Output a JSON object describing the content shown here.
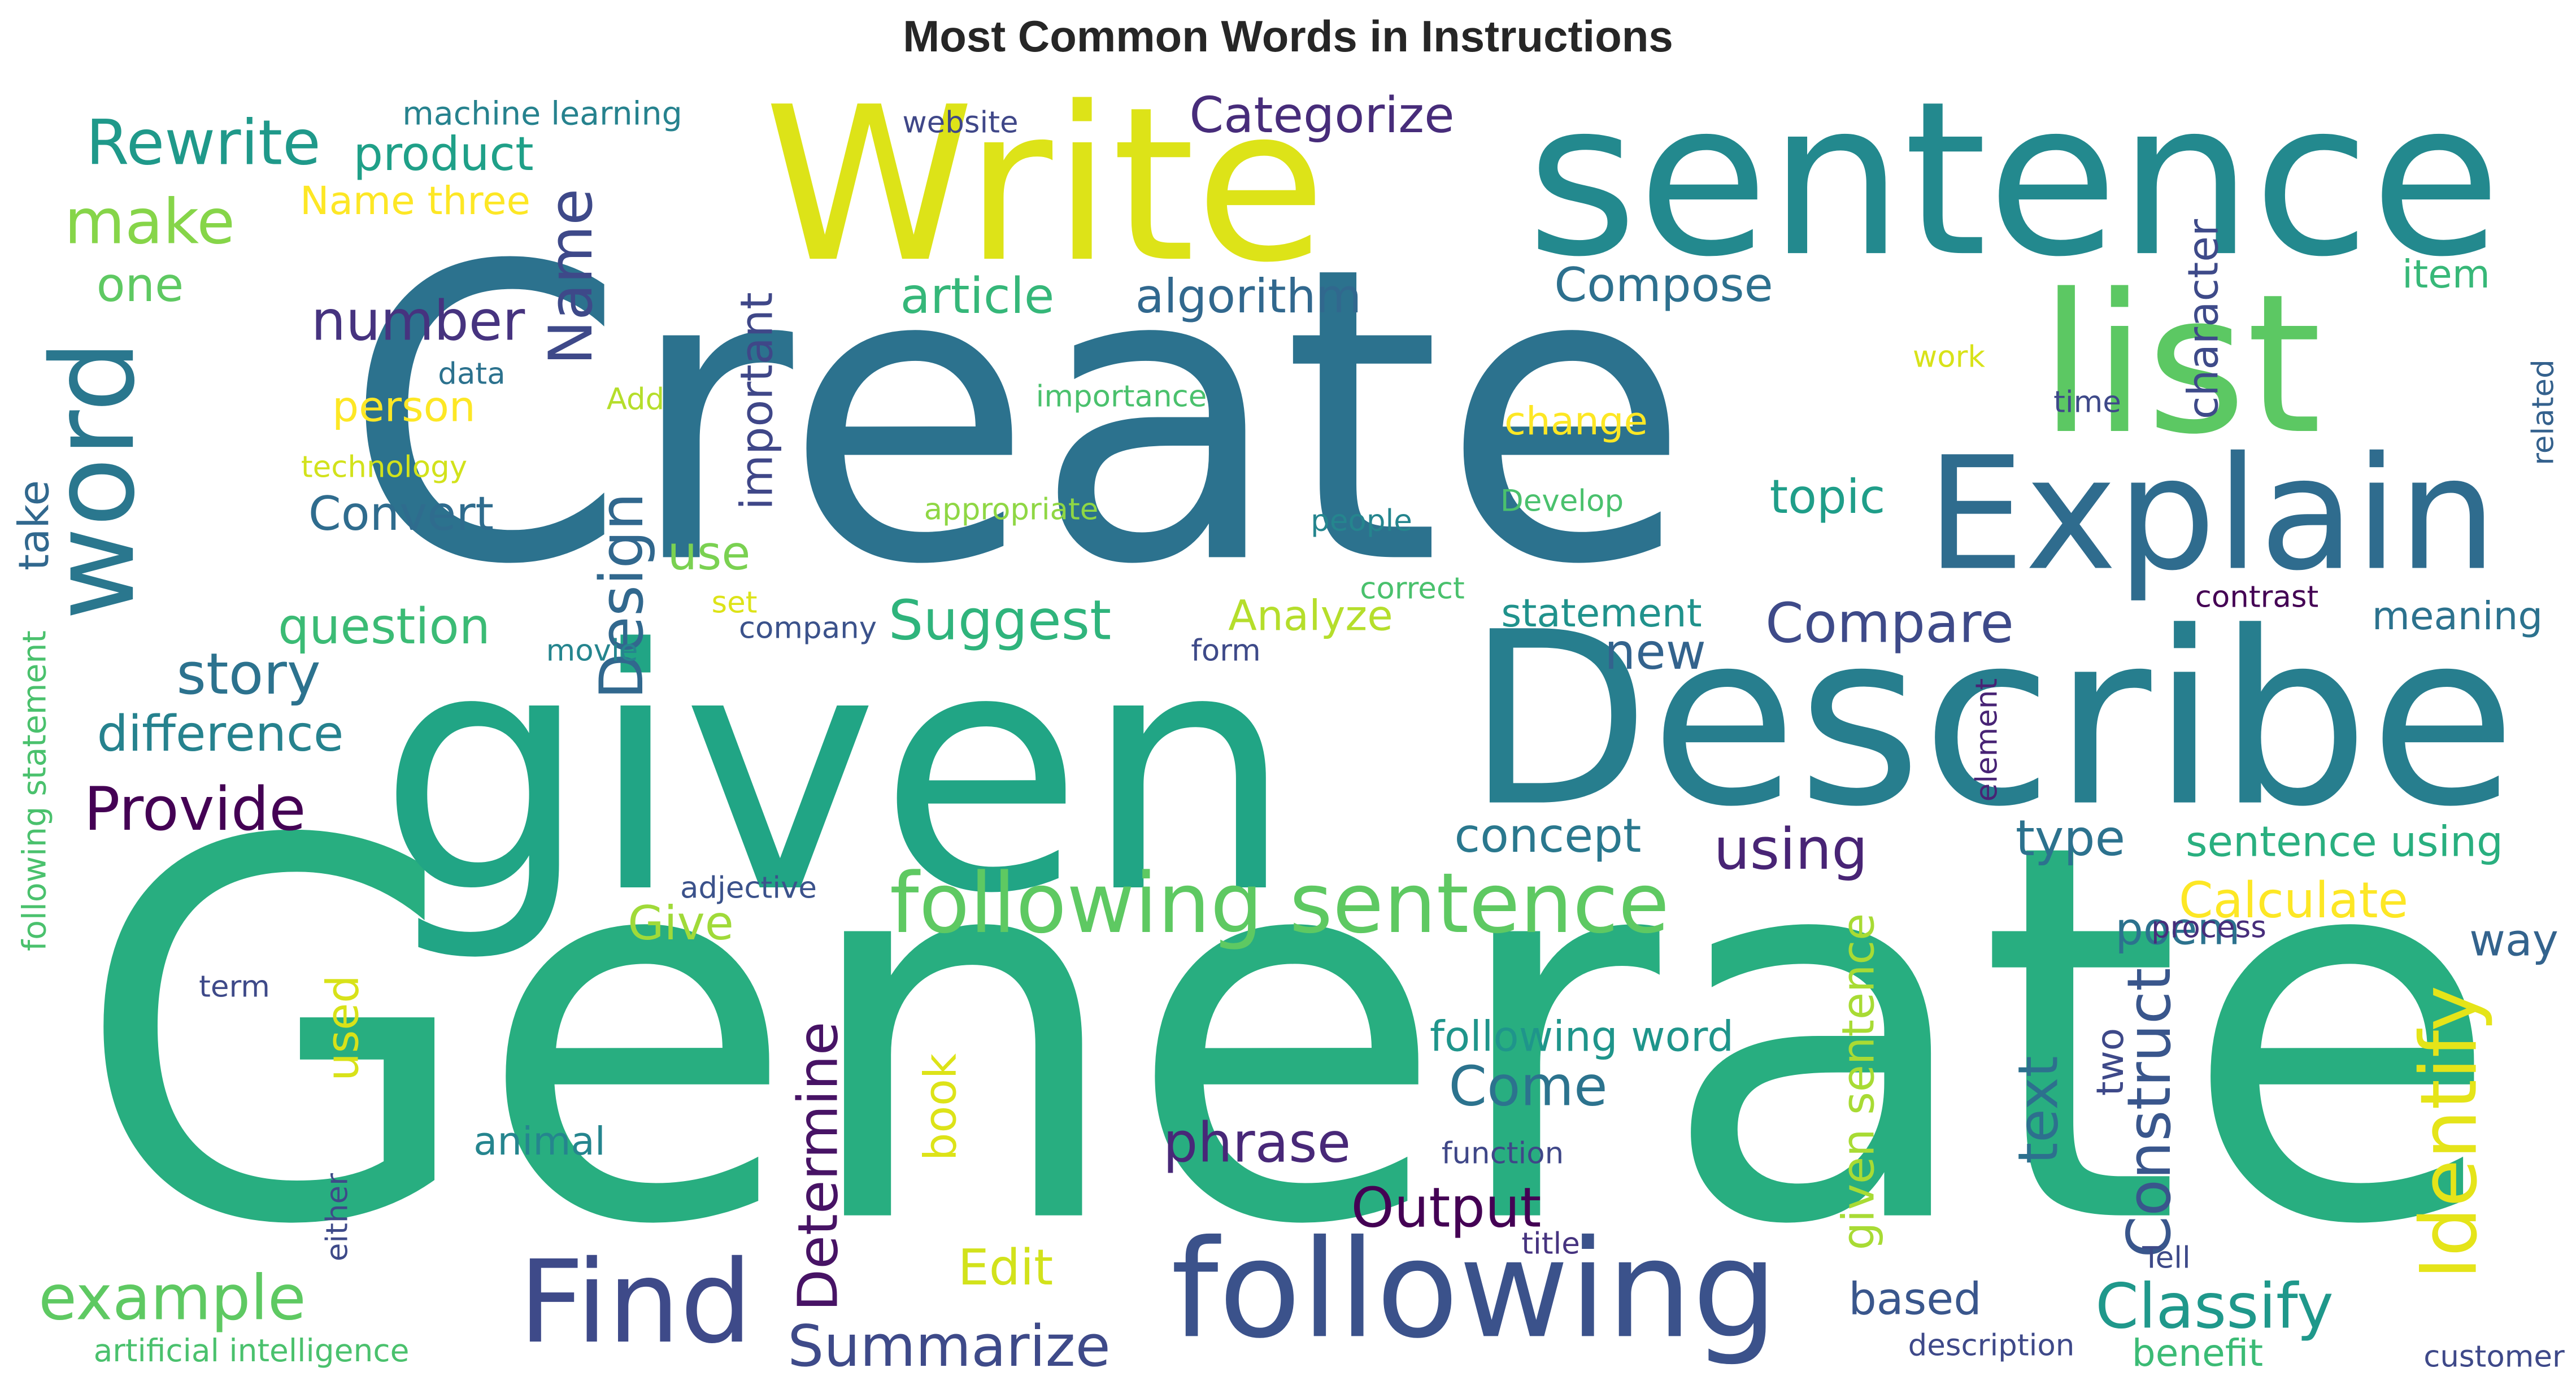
{
  "chart_data": {
    "type": "wordcloud",
    "title": "Most Common Words in Instructions",
    "colormap": "viridis",
    "background": "#ffffff",
    "words": [
      {
        "text": "Generate",
        "weight": 1.0,
        "color": "#28ae80",
        "vertical": false
      },
      {
        "text": "Create",
        "weight": 0.78,
        "color": "#2c728e",
        "vertical": false
      },
      {
        "text": "given",
        "weight": 0.64,
        "color": "#21a585",
        "vertical": false
      },
      {
        "text": "Describe",
        "weight": 0.46,
        "color": "#277e8e",
        "vertical": false
      },
      {
        "text": "Write",
        "weight": 0.41,
        "color": "#dde318",
        "vertical": false
      },
      {
        "text": "sentence",
        "weight": 0.41,
        "color": "#23898e",
        "vertical": false
      },
      {
        "text": "list",
        "weight": 0.37,
        "color": "#5cc863",
        "vertical": false
      },
      {
        "text": "Explain",
        "weight": 0.3,
        "color": "#2f6c8e",
        "vertical": false
      },
      {
        "text": "following",
        "weight": 0.26,
        "color": "#3b528b",
        "vertical": false
      },
      {
        "text": "word",
        "weight": 0.22,
        "color": "#2a778e",
        "vertical": true
      },
      {
        "text": "Find",
        "weight": 0.22,
        "color": "#3e4a89",
        "vertical": false
      },
      {
        "text": "following sentence",
        "weight": 0.16,
        "color": "#5ec962",
        "vertical": false
      },
      {
        "text": "Identify",
        "weight": 0.15,
        "color": "#e5e419",
        "vertical": true
      },
      {
        "text": "Rewrite",
        "weight": 0.12,
        "color": "#1f998a",
        "vertical": false
      },
      {
        "text": "make",
        "weight": 0.12,
        "color": "#86d549",
        "vertical": false
      },
      {
        "text": "example",
        "weight": 0.12,
        "color": "#5ec962",
        "vertical": false
      },
      {
        "text": "Classify",
        "weight": 0.12,
        "color": "#1f988b",
        "vertical": false
      },
      {
        "text": "Provide",
        "weight": 0.115,
        "color": "#440154",
        "vertical": false
      },
      {
        "text": "Name",
        "weight": 0.115,
        "color": "#3e4989",
        "vertical": true
      },
      {
        "text": "Design",
        "weight": 0.115,
        "color": "#31688e",
        "vertical": true
      },
      {
        "text": "Construct",
        "weight": 0.115,
        "color": "#39568c",
        "vertical": true
      },
      {
        "text": "story",
        "weight": 0.11,
        "color": "#2c728e",
        "vertical": false
      },
      {
        "text": "Summarize",
        "weight": 0.11,
        "color": "#3e4a89",
        "vertical": false
      },
      {
        "text": "using",
        "weight": 0.11,
        "color": "#482475",
        "vertical": false
      },
      {
        "text": "Suggest",
        "weight": 0.105,
        "color": "#2fb47c",
        "vertical": false
      },
      {
        "text": "Compare",
        "weight": 0.105,
        "color": "#3e4a89",
        "vertical": false
      },
      {
        "text": "number",
        "weight": 0.105,
        "color": "#46337f",
        "vertical": false
      },
      {
        "text": "Come",
        "weight": 0.105,
        "color": "#2c738e",
        "vertical": false
      },
      {
        "text": "Output",
        "weight": 0.105,
        "color": "#440154",
        "vertical": false
      },
      {
        "text": "phrase",
        "weight": 0.105,
        "color": "#482878",
        "vertical": false
      },
      {
        "text": "Determine",
        "weight": 0.105,
        "color": "#471365",
        "vertical": true
      },
      {
        "text": "text",
        "weight": 0.105,
        "color": "#2d708e",
        "vertical": true
      },
      {
        "text": "Categorize",
        "weight": 0.095,
        "color": "#472c7a",
        "vertical": false
      },
      {
        "text": "article",
        "weight": 0.095,
        "color": "#35b779",
        "vertical": false
      },
      {
        "text": "type",
        "weight": 0.095,
        "color": "#2c728e",
        "vertical": false
      },
      {
        "text": "difference",
        "weight": 0.095,
        "color": "#26828e",
        "vertical": false
      },
      {
        "text": "question",
        "weight": 0.095,
        "color": "#3bbb75",
        "vertical": false
      },
      {
        "text": "Edit",
        "weight": 0.095,
        "color": "#d2e21b",
        "vertical": false
      },
      {
        "text": "Calculate",
        "weight": 0.095,
        "color": "#fde725",
        "vertical": false
      },
      {
        "text": "new",
        "weight": 0.095,
        "color": "#33638d",
        "vertical": false
      },
      {
        "text": "algorithm",
        "weight": 0.09,
        "color": "#31688e",
        "vertical": false
      },
      {
        "text": "Compose",
        "weight": 0.09,
        "color": "#2d708e",
        "vertical": false
      },
      {
        "text": "one",
        "weight": 0.09,
        "color": "#5ec962",
        "vertical": false
      },
      {
        "text": "product",
        "weight": 0.09,
        "color": "#1fa088",
        "vertical": false
      },
      {
        "text": "Convert",
        "weight": 0.09,
        "color": "#2f6c8e",
        "vertical": false
      },
      {
        "text": "use",
        "weight": 0.09,
        "color": "#7ad151",
        "vertical": false
      },
      {
        "text": "topic",
        "weight": 0.09,
        "color": "#1f9e89",
        "vertical": false
      },
      {
        "text": "concept",
        "weight": 0.09,
        "color": "#2a788e",
        "vertical": false
      },
      {
        "text": "Give",
        "weight": 0.09,
        "color": "#a0da39",
        "vertical": false
      },
      {
        "text": "poem",
        "weight": 0.085,
        "color": "#2c728e",
        "vertical": false
      },
      {
        "text": "way",
        "weight": 0.085,
        "color": "#33638d",
        "vertical": false
      },
      {
        "text": "based",
        "weight": 0.085,
        "color": "#39568c",
        "vertical": false
      },
      {
        "text": "used",
        "weight": 0.085,
        "color": "#d8e219",
        "vertical": true
      },
      {
        "text": "book",
        "weight": 0.085,
        "color": "#dde318",
        "vertical": true
      },
      {
        "text": "given sentence",
        "weight": 0.085,
        "color": "#a8db34",
        "vertical": true
      },
      {
        "text": "important",
        "weight": 0.085,
        "color": "#3f4788",
        "vertical": true
      },
      {
        "text": "character",
        "weight": 0.08,
        "color": "#3e4a89",
        "vertical": true
      },
      {
        "text": "Analyze",
        "weight": 0.08,
        "color": "#b5de2b",
        "vertical": false
      },
      {
        "text": "sentence using",
        "weight": 0.08,
        "color": "#29af7f",
        "vertical": false
      },
      {
        "text": "following word",
        "weight": 0.08,
        "color": "#1f958b",
        "vertical": false
      },
      {
        "text": "person",
        "weight": 0.08,
        "color": "#fde725",
        "vertical": false
      },
      {
        "text": "Name three",
        "weight": 0.075,
        "color": "#fde725",
        "vertical": false
      },
      {
        "text": "take",
        "weight": 0.08,
        "color": "#31688e",
        "vertical": true
      },
      {
        "text": "meaning",
        "weight": 0.075,
        "color": "#2c728e",
        "vertical": false
      },
      {
        "text": "statement",
        "weight": 0.075,
        "color": "#20928c",
        "vertical": false
      },
      {
        "text": "animal",
        "weight": 0.075,
        "color": "#25858e",
        "vertical": false
      },
      {
        "text": "change",
        "weight": 0.075,
        "color": "#fde725",
        "vertical": false
      },
      {
        "text": "item",
        "weight": 0.075,
        "color": "#37b878",
        "vertical": false
      },
      {
        "text": "benefit",
        "weight": 0.072,
        "color": "#3bbb75",
        "vertical": false
      },
      {
        "text": "two",
        "weight": 0.072,
        "color": "#3e4989",
        "vertical": true
      },
      {
        "text": "machine learning",
        "weight": 0.062,
        "color": "#26828e",
        "vertical": false
      },
      {
        "text": "artificial intelligence",
        "weight": 0.06,
        "color": "#4ac16d",
        "vertical": false
      },
      {
        "text": "following statement",
        "weight": 0.062,
        "color": "#4ac16d",
        "vertical": true
      },
      {
        "text": "website",
        "weight": 0.058,
        "color": "#3f4788",
        "vertical": false
      },
      {
        "text": "data",
        "weight": 0.058,
        "color": "#2c728e",
        "vertical": false
      },
      {
        "text": "Add",
        "weight": 0.058,
        "color": "#b5de2b",
        "vertical": false
      },
      {
        "text": "technology",
        "weight": 0.058,
        "color": "#d2e21b",
        "vertical": false
      },
      {
        "text": "importance",
        "weight": 0.058,
        "color": "#4ac16d",
        "vertical": false
      },
      {
        "text": "appropriate",
        "weight": 0.058,
        "color": "#8fd744",
        "vertical": false
      },
      {
        "text": "work",
        "weight": 0.058,
        "color": "#d8e219",
        "vertical": false
      },
      {
        "text": "time",
        "weight": 0.058,
        "color": "#3e4989",
        "vertical": false
      },
      {
        "text": "related",
        "weight": 0.058,
        "color": "#34618d",
        "vertical": true
      },
      {
        "text": "Develop",
        "weight": 0.058,
        "color": "#4ac16d",
        "vertical": false
      },
      {
        "text": "people",
        "weight": 0.058,
        "color": "#25858e",
        "vertical": false
      },
      {
        "text": "correct",
        "weight": 0.058,
        "color": "#4ac16d",
        "vertical": false
      },
      {
        "text": "contrast",
        "weight": 0.058,
        "color": "#440154",
        "vertical": false
      },
      {
        "text": "set",
        "weight": 0.058,
        "color": "#dde318",
        "vertical": false
      },
      {
        "text": "company",
        "weight": 0.058,
        "color": "#3b528b",
        "vertical": false
      },
      {
        "text": "movie",
        "weight": 0.058,
        "color": "#25858e",
        "vertical": false
      },
      {
        "text": "form",
        "weight": 0.058,
        "color": "#3e4a89",
        "vertical": false
      },
      {
        "text": "element",
        "weight": 0.058,
        "color": "#482475",
        "vertical": true
      },
      {
        "text": "adjective",
        "weight": 0.058,
        "color": "#3b528b",
        "vertical": false
      },
      {
        "text": "process",
        "weight": 0.058,
        "color": "#472d7b",
        "vertical": false
      },
      {
        "text": "term",
        "weight": 0.058,
        "color": "#3e4a89",
        "vertical": false
      },
      {
        "text": "function",
        "weight": 0.058,
        "color": "#3f4788",
        "vertical": false
      },
      {
        "text": "either",
        "weight": 0.058,
        "color": "#3e4a89",
        "vertical": true
      },
      {
        "text": "title",
        "weight": 0.058,
        "color": "#46337f",
        "vertical": false
      },
      {
        "text": "Tell",
        "weight": 0.058,
        "color": "#3e4a89",
        "vertical": false
      },
      {
        "text": "description",
        "weight": 0.058,
        "color": "#3e4989",
        "vertical": false
      },
      {
        "text": "customer",
        "weight": 0.058,
        "color": "#3e4989",
        "vertical": false
      }
    ]
  }
}
